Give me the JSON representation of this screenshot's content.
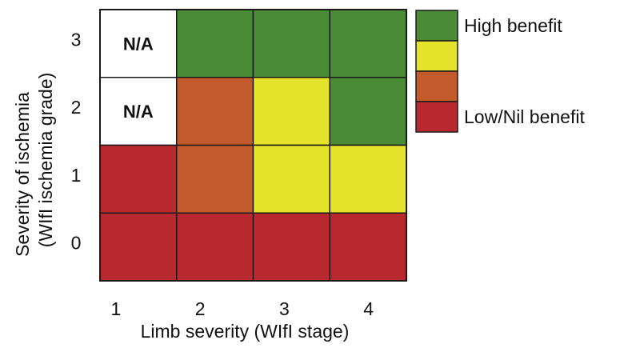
{
  "chart_data": {
    "type": "heatmap",
    "title": "",
    "xlabel": "Limb severity (WIfI stage)",
    "ylabel_lines": [
      "Severity of ischemia",
      "(WIfI ischemia grade)"
    ],
    "x_categories": [
      "1",
      "2",
      "3",
      "4"
    ],
    "y_categories": [
      "0",
      "1",
      "2",
      "3"
    ],
    "levels": [
      {
        "name": "High benefit",
        "color": "#4a8c35"
      },
      {
        "name": "",
        "color": "#e4e22a"
      },
      {
        "name": "",
        "color": "#c35a2b"
      },
      {
        "name": "Low/Nil benefit",
        "color": "#b8292f"
      }
    ],
    "cells": [
      {
        "x": "1",
        "y": "3",
        "level": null,
        "text": "N/A"
      },
      {
        "x": "2",
        "y": "3",
        "level": 0
      },
      {
        "x": "3",
        "y": "3",
        "level": 0
      },
      {
        "x": "4",
        "y": "3",
        "level": 0
      },
      {
        "x": "1",
        "y": "2",
        "level": null,
        "text": "N/A"
      },
      {
        "x": "2",
        "y": "2",
        "level": 2
      },
      {
        "x": "3",
        "y": "2",
        "level": 1
      },
      {
        "x": "4",
        "y": "2",
        "level": 0
      },
      {
        "x": "1",
        "y": "1",
        "level": 3
      },
      {
        "x": "2",
        "y": "1",
        "level": 2
      },
      {
        "x": "3",
        "y": "1",
        "level": 1
      },
      {
        "x": "4",
        "y": "1",
        "level": 1
      },
      {
        "x": "1",
        "y": "0",
        "level": 3
      },
      {
        "x": "2",
        "y": "0",
        "level": 3
      },
      {
        "x": "3",
        "y": "0",
        "level": 3
      },
      {
        "x": "4",
        "y": "0",
        "level": 3
      }
    ],
    "na_color": "#ffffff",
    "legend_position": "right"
  }
}
